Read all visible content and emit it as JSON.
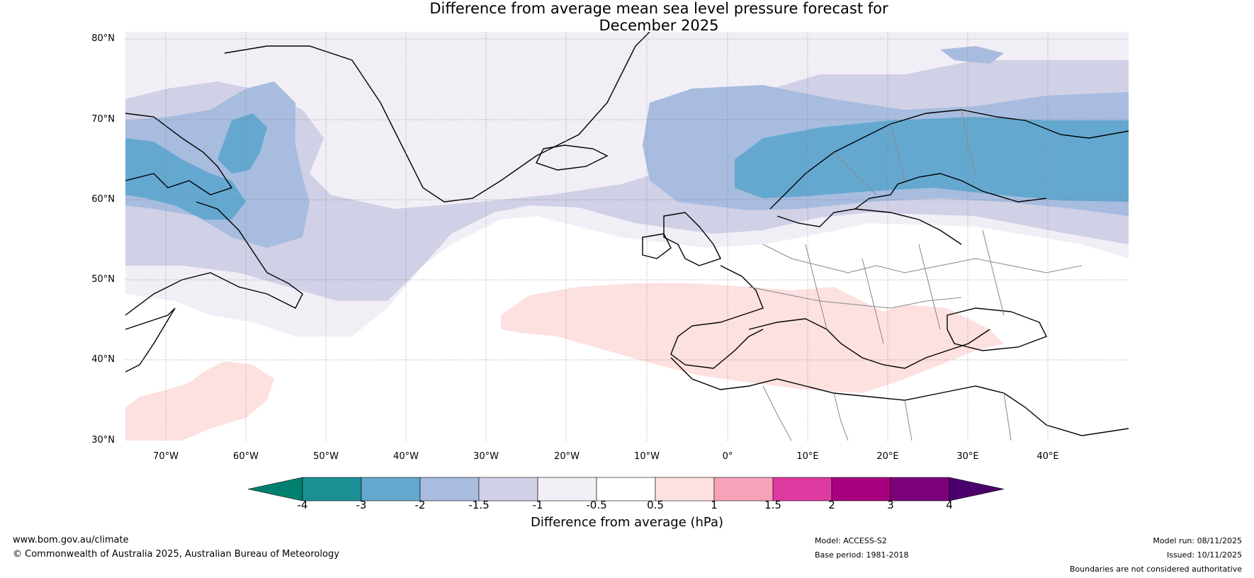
{
  "title": {
    "line1": "Difference from average mean sea level pressure forecast for",
    "line2": "December 2025"
  },
  "map": {
    "lat_labels": [
      "80°N",
      "70°N",
      "60°N",
      "50°N",
      "40°N",
      "30°N"
    ],
    "lon_labels": [
      "70°W",
      "60°W",
      "50°W",
      "40°W",
      "30°W",
      "20°W",
      "10°W",
      "0°",
      "10°E",
      "20°E",
      "30°E",
      "40°E"
    ],
    "extent_lon": [
      -75,
      50
    ],
    "extent_lat": [
      30,
      81
    ]
  },
  "colorbar": {
    "label": "Difference from average (hPa)",
    "ticks": [
      "-4",
      "-3",
      "-2",
      "-1.5",
      "-1",
      "-0.5",
      "0.5",
      "1",
      "1.5",
      "2",
      "3",
      "4"
    ],
    "colors": [
      "#1b9196",
      "#64a8d0",
      "#a7bcdf",
      "#d0d0e6",
      "#f2eef6",
      "#ffffff",
      "#fde0e0",
      "#f7a2b9",
      "#de3aa0",
      "#a7007e",
      "#7b0079"
    ],
    "under_color": "#00806e",
    "over_color": "#4a006a"
  },
  "footer": {
    "website": "www.bom.gov.au/climate",
    "copyright": "© Commonwealth of Australia 2025, Australian Bureau of Meteorology",
    "model": "Model: ACCESS-S2",
    "base_period": "Base period: 1981-2018",
    "model_run": "Model run: 08/11/2025",
    "issued": "Issued: 10/11/2025",
    "disclaimer": "Boundaries are not considered authoritative"
  }
}
